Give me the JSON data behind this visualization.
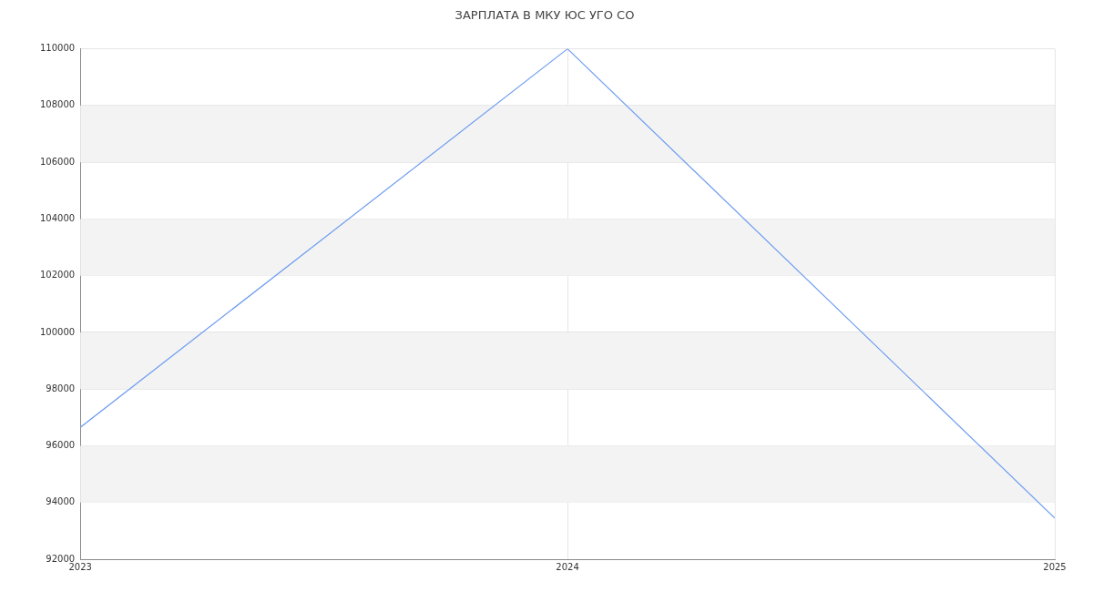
{
  "chart_data": {
    "type": "line",
    "title": "ЗАРПЛАТА В МКУ ЮС УГО СО",
    "x": [
      2023,
      2024,
      2025
    ],
    "series": [
      {
        "color": "#6d9cf0",
        "values": [
          96650,
          110000,
          93450
        ]
      }
    ],
    "xlim": [
      2023,
      2025
    ],
    "xticks": [
      2023,
      2024,
      2025
    ],
    "ylim": [
      92000,
      110000
    ],
    "yticks": [
      92000,
      94000,
      96000,
      98000,
      100000,
      102000,
      104000,
      106000,
      108000,
      110000
    ],
    "bands": [
      {
        "axis": "y",
        "from": 94000,
        "to": 96000,
        "color": "#f3f3f3"
      },
      {
        "axis": "y",
        "from": 98000,
        "to": 100000,
        "color": "#f3f3f3"
      },
      {
        "axis": "y",
        "from": 102000,
        "to": 104000,
        "color": "#f3f3f3"
      },
      {
        "axis": "y",
        "from": 106000,
        "to": 108000,
        "color": "#f3f3f3"
      }
    ],
    "grid": true,
    "legend": false,
    "marker": "none",
    "line_style": "solid"
  }
}
